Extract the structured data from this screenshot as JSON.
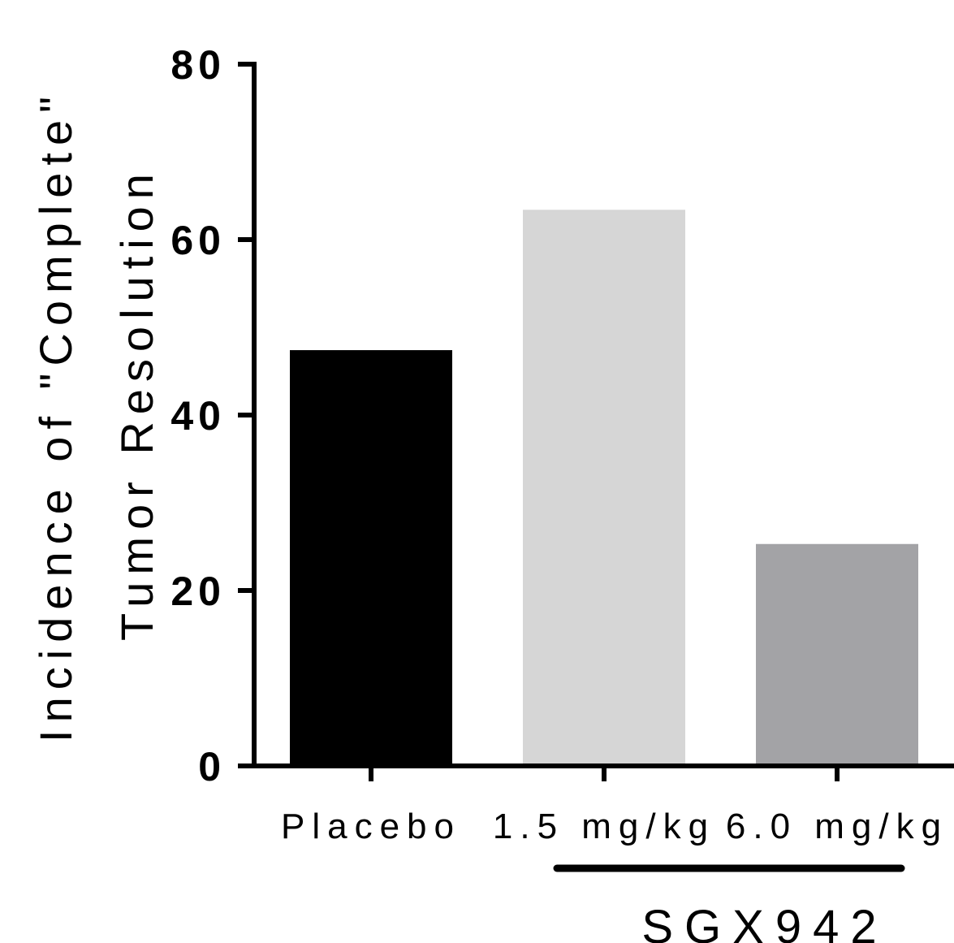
{
  "chart_data": {
    "type": "bar",
    "categories": [
      "Placebo",
      "1.5 mg/kg",
      "6.0 mg/kg"
    ],
    "values": [
      47.4,
      63.4,
      25.3
    ],
    "colors": [
      "#000000",
      "#d6d6d6",
      "#a3a3a6"
    ],
    "ylabel_lines": [
      "Incidence of \"Complete\"",
      "Tumor Resolution"
    ],
    "y_ticks": [
      "0",
      "20",
      "40",
      "60",
      "80"
    ],
    "ylim": [
      0,
      80
    ],
    "grid": false,
    "group_label": "SGX942"
  }
}
